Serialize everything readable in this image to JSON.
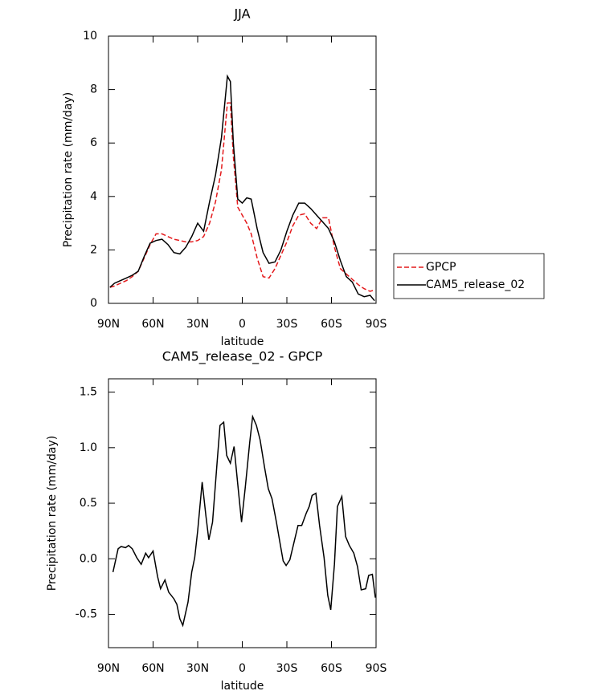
{
  "chart_data": [
    {
      "type": "line",
      "title": "JJA",
      "x_label": "latitude",
      "y_label": "Precipitation rate (mm/day)",
      "x": [
        89,
        86,
        82,
        78,
        74,
        70,
        66,
        62,
        58,
        54,
        50,
        46,
        42,
        38,
        34,
        30,
        26,
        22,
        18,
        14,
        10,
        8,
        6,
        3,
        0,
        -3,
        -6,
        -10,
        -14,
        -18,
        -22,
        -26,
        -30,
        -34,
        -38,
        -42,
        -46,
        -50,
        -54,
        -58,
        -62,
        -66,
        -70,
        -74,
        -78,
        -82,
        -86,
        -89
      ],
      "series": [
        {
          "name": "GPCP",
          "color": "#e41a1c",
          "linestyle": "dashed",
          "values": [
            0.6,
            0.65,
            0.75,
            0.85,
            1.0,
            1.2,
            1.7,
            2.2,
            2.6,
            2.6,
            2.5,
            2.4,
            2.35,
            2.3,
            2.3,
            2.35,
            2.5,
            3.0,
            3.8,
            5.0,
            7.5,
            7.5,
            5.5,
            3.6,
            3.3,
            3.0,
            2.6,
            1.7,
            1.0,
            0.95,
            1.3,
            1.8,
            2.3,
            2.9,
            3.3,
            3.35,
            3.0,
            2.8,
            3.2,
            3.2,
            2.1,
            1.3,
            1.1,
            0.9,
            0.7,
            0.55,
            0.45,
            0.5
          ]
        },
        {
          "name": "CAM5_release_02",
          "color": "#000000",
          "linestyle": "solid",
          "values": [
            0.6,
            0.75,
            0.85,
            0.95,
            1.05,
            1.2,
            1.75,
            2.25,
            2.35,
            2.4,
            2.2,
            1.9,
            1.85,
            2.1,
            2.5,
            3.0,
            2.7,
            3.8,
            4.8,
            6.2,
            8.5,
            8.3,
            6.0,
            3.9,
            3.75,
            3.95,
            3.9,
            2.8,
            1.9,
            1.5,
            1.55,
            2.0,
            2.7,
            3.3,
            3.75,
            3.75,
            3.55,
            3.3,
            3.05,
            2.8,
            2.3,
            1.6,
            1.0,
            0.8,
            0.35,
            0.25,
            0.3,
            0.1
          ]
        }
      ],
      "xlim": [
        90,
        -90
      ],
      "xticks": [
        {
          "value": 90,
          "label": "90N"
        },
        {
          "value": 60,
          "label": "60N"
        },
        {
          "value": 30,
          "label": "30N"
        },
        0,
        {
          "value": -30,
          "label": "30S"
        },
        {
          "value": -60,
          "label": "60S"
        },
        {
          "value": -90,
          "label": "90S"
        }
      ],
      "ylim": [
        0,
        10
      ],
      "yticks": [
        0,
        2,
        4,
        6,
        8,
        10
      ],
      "legend": "right"
    },
    {
      "type": "line",
      "title": "CAM5_release_02 - GPCP",
      "x_label": "latitude",
      "y_label": "Precipitation rate (mm/day)",
      "x": [
        87,
        83.5,
        81.5,
        78.5,
        76.5,
        74,
        71,
        68,
        65,
        63,
        60,
        57,
        55,
        52,
        49.5,
        46,
        44,
        42,
        40,
        36.5,
        34,
        32,
        30,
        27,
        24.5,
        22.5,
        20,
        17,
        15,
        12.5,
        10.5,
        8,
        5.5,
        3,
        0.5,
        -2,
        -5,
        -7,
        -9.5,
        -12,
        -15,
        -17.5,
        -20,
        -23,
        -25,
        -27.5,
        -29.5,
        -32,
        -35,
        -37.5,
        -40,
        -43,
        -45,
        -47,
        -49.5,
        -52,
        -55,
        -57.5,
        -59.5,
        -62,
        -64,
        -67,
        -69.5,
        -72,
        -75,
        -77.5,
        -80,
        -83,
        -85,
        -87.5,
        -89.5
      ],
      "series": [
        {
          "name": "CAM5_release_02 - GPCP",
          "color": "#000000",
          "linestyle": "solid",
          "values": [
            -0.12,
            0.09,
            0.11,
            0.1,
            0.12,
            0.09,
            0.01,
            -0.05,
            0.05,
            0.01,
            0.07,
            -0.16,
            -0.27,
            -0.19,
            -0.3,
            -0.36,
            -0.41,
            -0.54,
            -0.6,
            -0.39,
            -0.12,
            0.01,
            0.25,
            0.69,
            0.39,
            0.17,
            0.33,
            0.86,
            1.2,
            1.23,
            0.93,
            0.86,
            1.01,
            0.67,
            0.33,
            0.64,
            1.05,
            1.28,
            1.2,
            1.07,
            0.82,
            0.63,
            0.54,
            0.33,
            0.17,
            -0.02,
            -0.06,
            -0.01,
            0.16,
            0.3,
            0.3,
            0.41,
            0.47,
            0.57,
            0.59,
            0.3,
            0.01,
            -0.33,
            -0.46,
            -0.05,
            0.47,
            0.56,
            0.2,
            0.12,
            0.05,
            -0.07,
            -0.28,
            -0.27,
            -0.15,
            -0.14,
            -0.35
          ]
        }
      ],
      "xlim": [
        90,
        -90
      ],
      "xticks": [
        {
          "value": 90,
          "label": "90N"
        },
        {
          "value": 60,
          "label": "60N"
        },
        {
          "value": 30,
          "label": "30N"
        },
        0,
        {
          "value": -30,
          "label": "30S"
        },
        {
          "value": -60,
          "label": "60S"
        },
        {
          "value": -90,
          "label": "90S"
        }
      ],
      "ylim": [
        -0.8,
        1.62
      ],
      "yticks": [
        {
          "value": -0.5,
          "label": "-0.5"
        },
        {
          "value": 0,
          "label": "0.0"
        },
        0.5,
        {
          "value": 1,
          "label": "1.0"
        },
        1.5
      ]
    }
  ]
}
